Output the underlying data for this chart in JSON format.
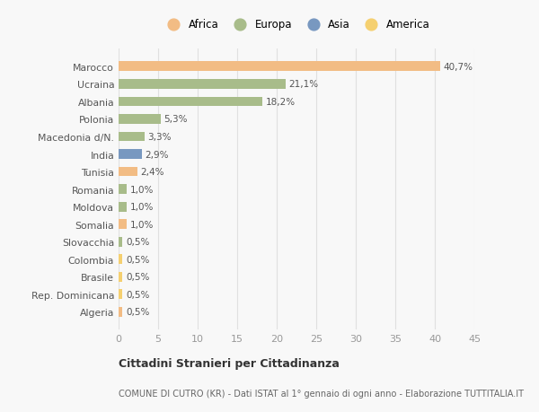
{
  "categories": [
    "Marocco",
    "Ucraina",
    "Albania",
    "Polonia",
    "Macedonia d/N.",
    "India",
    "Tunisia",
    "Romania",
    "Moldova",
    "Somalia",
    "Slovacchia",
    "Colombia",
    "Brasile",
    "Rep. Dominicana",
    "Algeria"
  ],
  "values": [
    40.7,
    21.1,
    18.2,
    5.3,
    3.3,
    2.9,
    2.4,
    1.0,
    1.0,
    1.0,
    0.5,
    0.5,
    0.5,
    0.5,
    0.5
  ],
  "labels": [
    "40,7%",
    "21,1%",
    "18,2%",
    "5,3%",
    "3,3%",
    "2,9%",
    "2,4%",
    "1,0%",
    "1,0%",
    "1,0%",
    "0,5%",
    "0,5%",
    "0,5%",
    "0,5%",
    "0,5%"
  ],
  "colors": [
    "#f2bc84",
    "#a8bc8a",
    "#a8bc8a",
    "#a8bc8a",
    "#a8bc8a",
    "#7898c0",
    "#f2bc84",
    "#a8bc8a",
    "#a8bc8a",
    "#f2bc84",
    "#a8bc8a",
    "#f5d070",
    "#f5d070",
    "#f5d070",
    "#f2bc84"
  ],
  "legend_labels": [
    "Africa",
    "Europa",
    "Asia",
    "America"
  ],
  "legend_colors": [
    "#f2bc84",
    "#a8bc8a",
    "#7898c0",
    "#f5d070"
  ],
  "xlim": [
    0,
    45
  ],
  "xticks": [
    0,
    5,
    10,
    15,
    20,
    25,
    30,
    35,
    40,
    45
  ],
  "title_main": "Cittadini Stranieri per Cittadinanza",
  "title_sub": "COMUNE DI CUTRO (KR) - Dati ISTAT al 1° gennaio di ogni anno - Elaborazione TUTTITALIA.IT",
  "bg_color": "#f8f8f8",
  "grid_color": "#e0e0e0",
  "bar_height": 0.55
}
